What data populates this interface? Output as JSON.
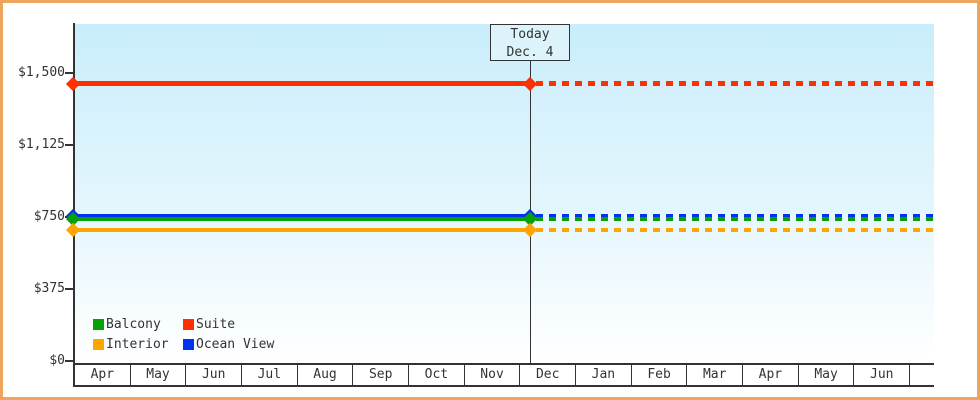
{
  "window": {
    "border_color": "#eda55d",
    "background": "#ffffff",
    "text_color": "#333333"
  },
  "chart_data": {
    "type": "line",
    "title": "",
    "today_annotation": {
      "line1": "Today",
      "line2": "Dec. 4"
    },
    "y_axis": {
      "tick_labels": [
        "$1,500",
        "$1,125",
        "$750",
        "$375",
        "$0"
      ],
      "tick_values": [
        1500,
        1125,
        750,
        375,
        0
      ],
      "ylim": [
        0,
        1755
      ],
      "unit": "USD"
    },
    "x_axis": {
      "month_labels": [
        "Apr",
        "May",
        "Jun",
        "Jul",
        "Aug",
        "Sep",
        "Oct",
        "Nov",
        "Dec",
        "Jan",
        "Feb",
        "Mar",
        "Apr",
        "May",
        "Jun"
      ],
      "trailing_empty_cell": true
    },
    "today": {
      "label_month": "Dec",
      "label_day": 4,
      "month_index": 8
    },
    "series": [
      {
        "name": "Ocean View",
        "color": "#0033ee",
        "value": 755,
        "thickness": 4,
        "past_style": "solid",
        "future_style": "dashed"
      },
      {
        "name": "Balcony",
        "color": "#08a008",
        "value": 737,
        "thickness": 4,
        "past_style": "solid",
        "future_style": "dashed"
      },
      {
        "name": "Interior",
        "color": "#ffa500",
        "value": 682,
        "thickness": 4,
        "past_style": "solid",
        "future_style": "dashed"
      },
      {
        "name": "Suite",
        "color": "#ff3000",
        "value": 1443,
        "thickness": 5,
        "past_style": "solid",
        "future_style": "dashed"
      }
    ],
    "legend": {
      "position": "bottom-left-inside-plot",
      "rows": [
        [
          "Balcony",
          "Suite"
        ],
        [
          "Interior",
          "Ocean View"
        ]
      ]
    },
    "plot_background_gradient": [
      "#c9edfb",
      "#ffffff"
    ]
  }
}
